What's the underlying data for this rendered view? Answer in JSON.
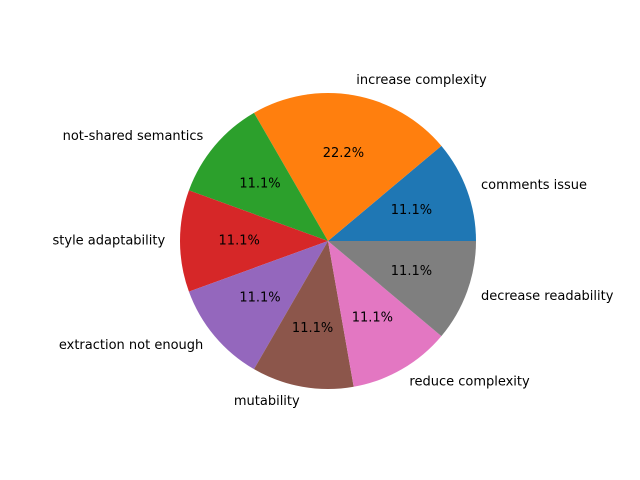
{
  "chart_data": {
    "type": "pie",
    "slices": [
      {
        "label": "comments issue",
        "value": 11.1,
        "pct_label": "11.1%",
        "color": "#1f77b4"
      },
      {
        "label": "increase complexity",
        "value": 22.2,
        "pct_label": "22.2%",
        "color": "#ff7f0e"
      },
      {
        "label": "not-shared semantics",
        "value": 11.1,
        "pct_label": "11.1%",
        "color": "#2ca02c"
      },
      {
        "label": "style adaptability",
        "value": 11.1,
        "pct_label": "11.1%",
        "color": "#d62728"
      },
      {
        "label": "extraction not enough",
        "value": 11.1,
        "pct_label": "11.1%",
        "color": "#9467bd"
      },
      {
        "label": "mutability",
        "value": 11.1,
        "pct_label": "11.1%",
        "color": "#8c564b"
      },
      {
        "label": "reduce complexity",
        "value": 11.1,
        "pct_label": "11.1%",
        "color": "#e377c2"
      },
      {
        "label": "decrease readability",
        "value": 11.1,
        "pct_label": "11.1%",
        "color": "#7f7f7f"
      }
    ],
    "start_angle_deg": 0,
    "direction": "counterclockwise",
    "legend": "none"
  }
}
